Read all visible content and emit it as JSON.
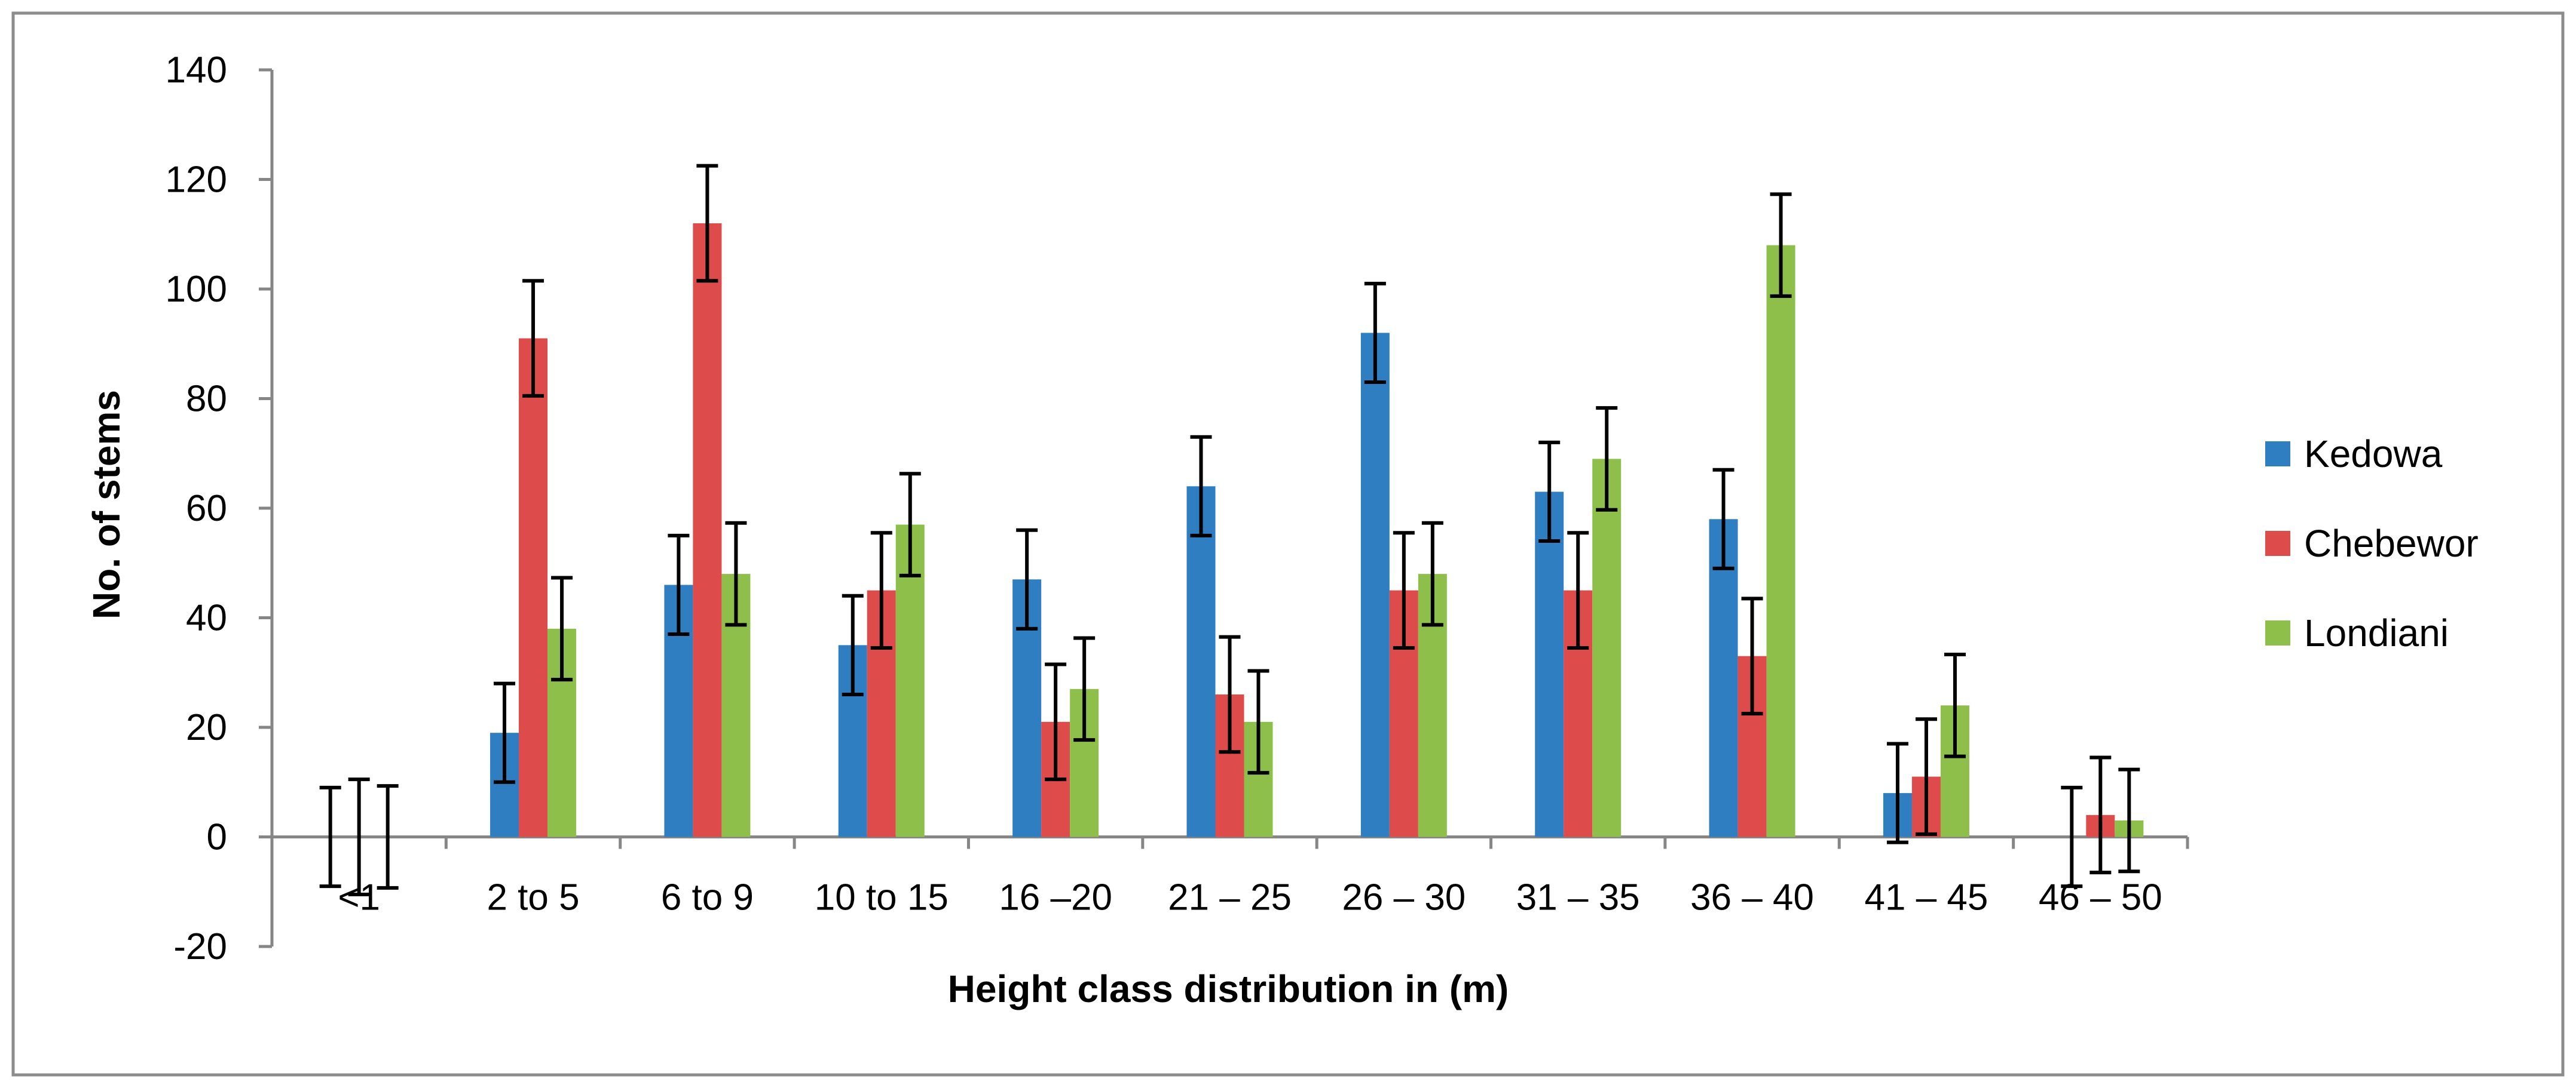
{
  "chart_data": {
    "type": "bar",
    "title": "",
    "xlabel": "Height class distribution in (m)",
    "ylabel": "No. of stems",
    "ylim": [
      -20,
      140
    ],
    "yticks": [
      -20,
      0,
      20,
      40,
      60,
      80,
      100,
      120,
      140
    ],
    "ytick_labels": [
      "-20",
      "0",
      "20",
      "40",
      "60",
      "80",
      "100",
      "120",
      "140"
    ],
    "categories": [
      "<1",
      "2 to 5",
      "6 to 9",
      "10 to 15",
      "16 –20",
      "21 – 25",
      "26 – 30",
      "31 – 35",
      "36 – 40",
      "41 – 45",
      "46 – 50"
    ],
    "series": [
      {
        "name": "Kedowa",
        "color": "#2F7EC1",
        "values": [
          0,
          19,
          46,
          35,
          47,
          64,
          92,
          63,
          58,
          8,
          0
        ],
        "error": 9
      },
      {
        "name": "Chebewor",
        "color": "#DD4B4B",
        "values": [
          0,
          91,
          112,
          45,
          21,
          26,
          45,
          45,
          33,
          11,
          4
        ],
        "error": 10.5
      },
      {
        "name": "Londiani",
        "color": "#8EBF4A",
        "values": [
          0,
          38,
          48,
          57,
          27,
          21,
          48,
          69,
          108,
          24,
          3
        ],
        "error": 9.3
      }
    ],
    "grid": false,
    "legend_position": "right",
    "error_bars": true
  }
}
